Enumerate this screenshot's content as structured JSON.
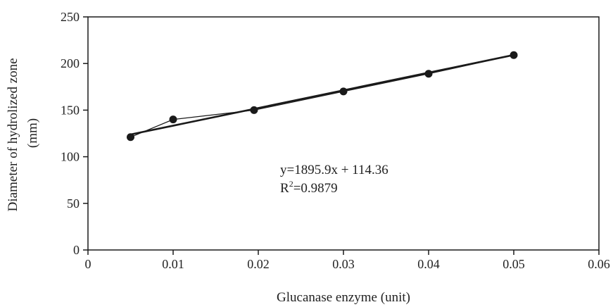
{
  "chart_data": {
    "type": "scatter",
    "title": "",
    "xlabel": "Glucanase enzyme (unit)",
    "ylabel_lines": [
      "Diameter of hydrolized zone",
      "(mm)"
    ],
    "xlim": [
      0,
      0.06
    ],
    "ylim": [
      0,
      250
    ],
    "x_ticks": [
      "0",
      "0.01",
      "0.02",
      "0.03",
      "0.04",
      "0.05",
      "0.06"
    ],
    "y_ticks": [
      "0",
      "50",
      "100",
      "150",
      "200",
      "250"
    ],
    "grid": false,
    "legend": "none",
    "series": [
      {
        "x": [
          0.005,
          0.01,
          0.0195,
          0.03,
          0.04,
          0.05
        ],
        "y": [
          121,
          140,
          150,
          170,
          189,
          209
        ],
        "style": "points-connected",
        "marker": "circle",
        "color": "#1a1a1a"
      }
    ],
    "trendline": {
      "type": "linear",
      "slope": 1895.9,
      "intercept": 114.36,
      "x_range": [
        0.005,
        0.05
      ],
      "color": "#1a1a1a"
    },
    "annotations": {
      "equation": "y=1895.9x + 114.36",
      "r2_prefix": "R",
      "r2_superscript": "2",
      "r2_value": "=0.9879"
    }
  }
}
